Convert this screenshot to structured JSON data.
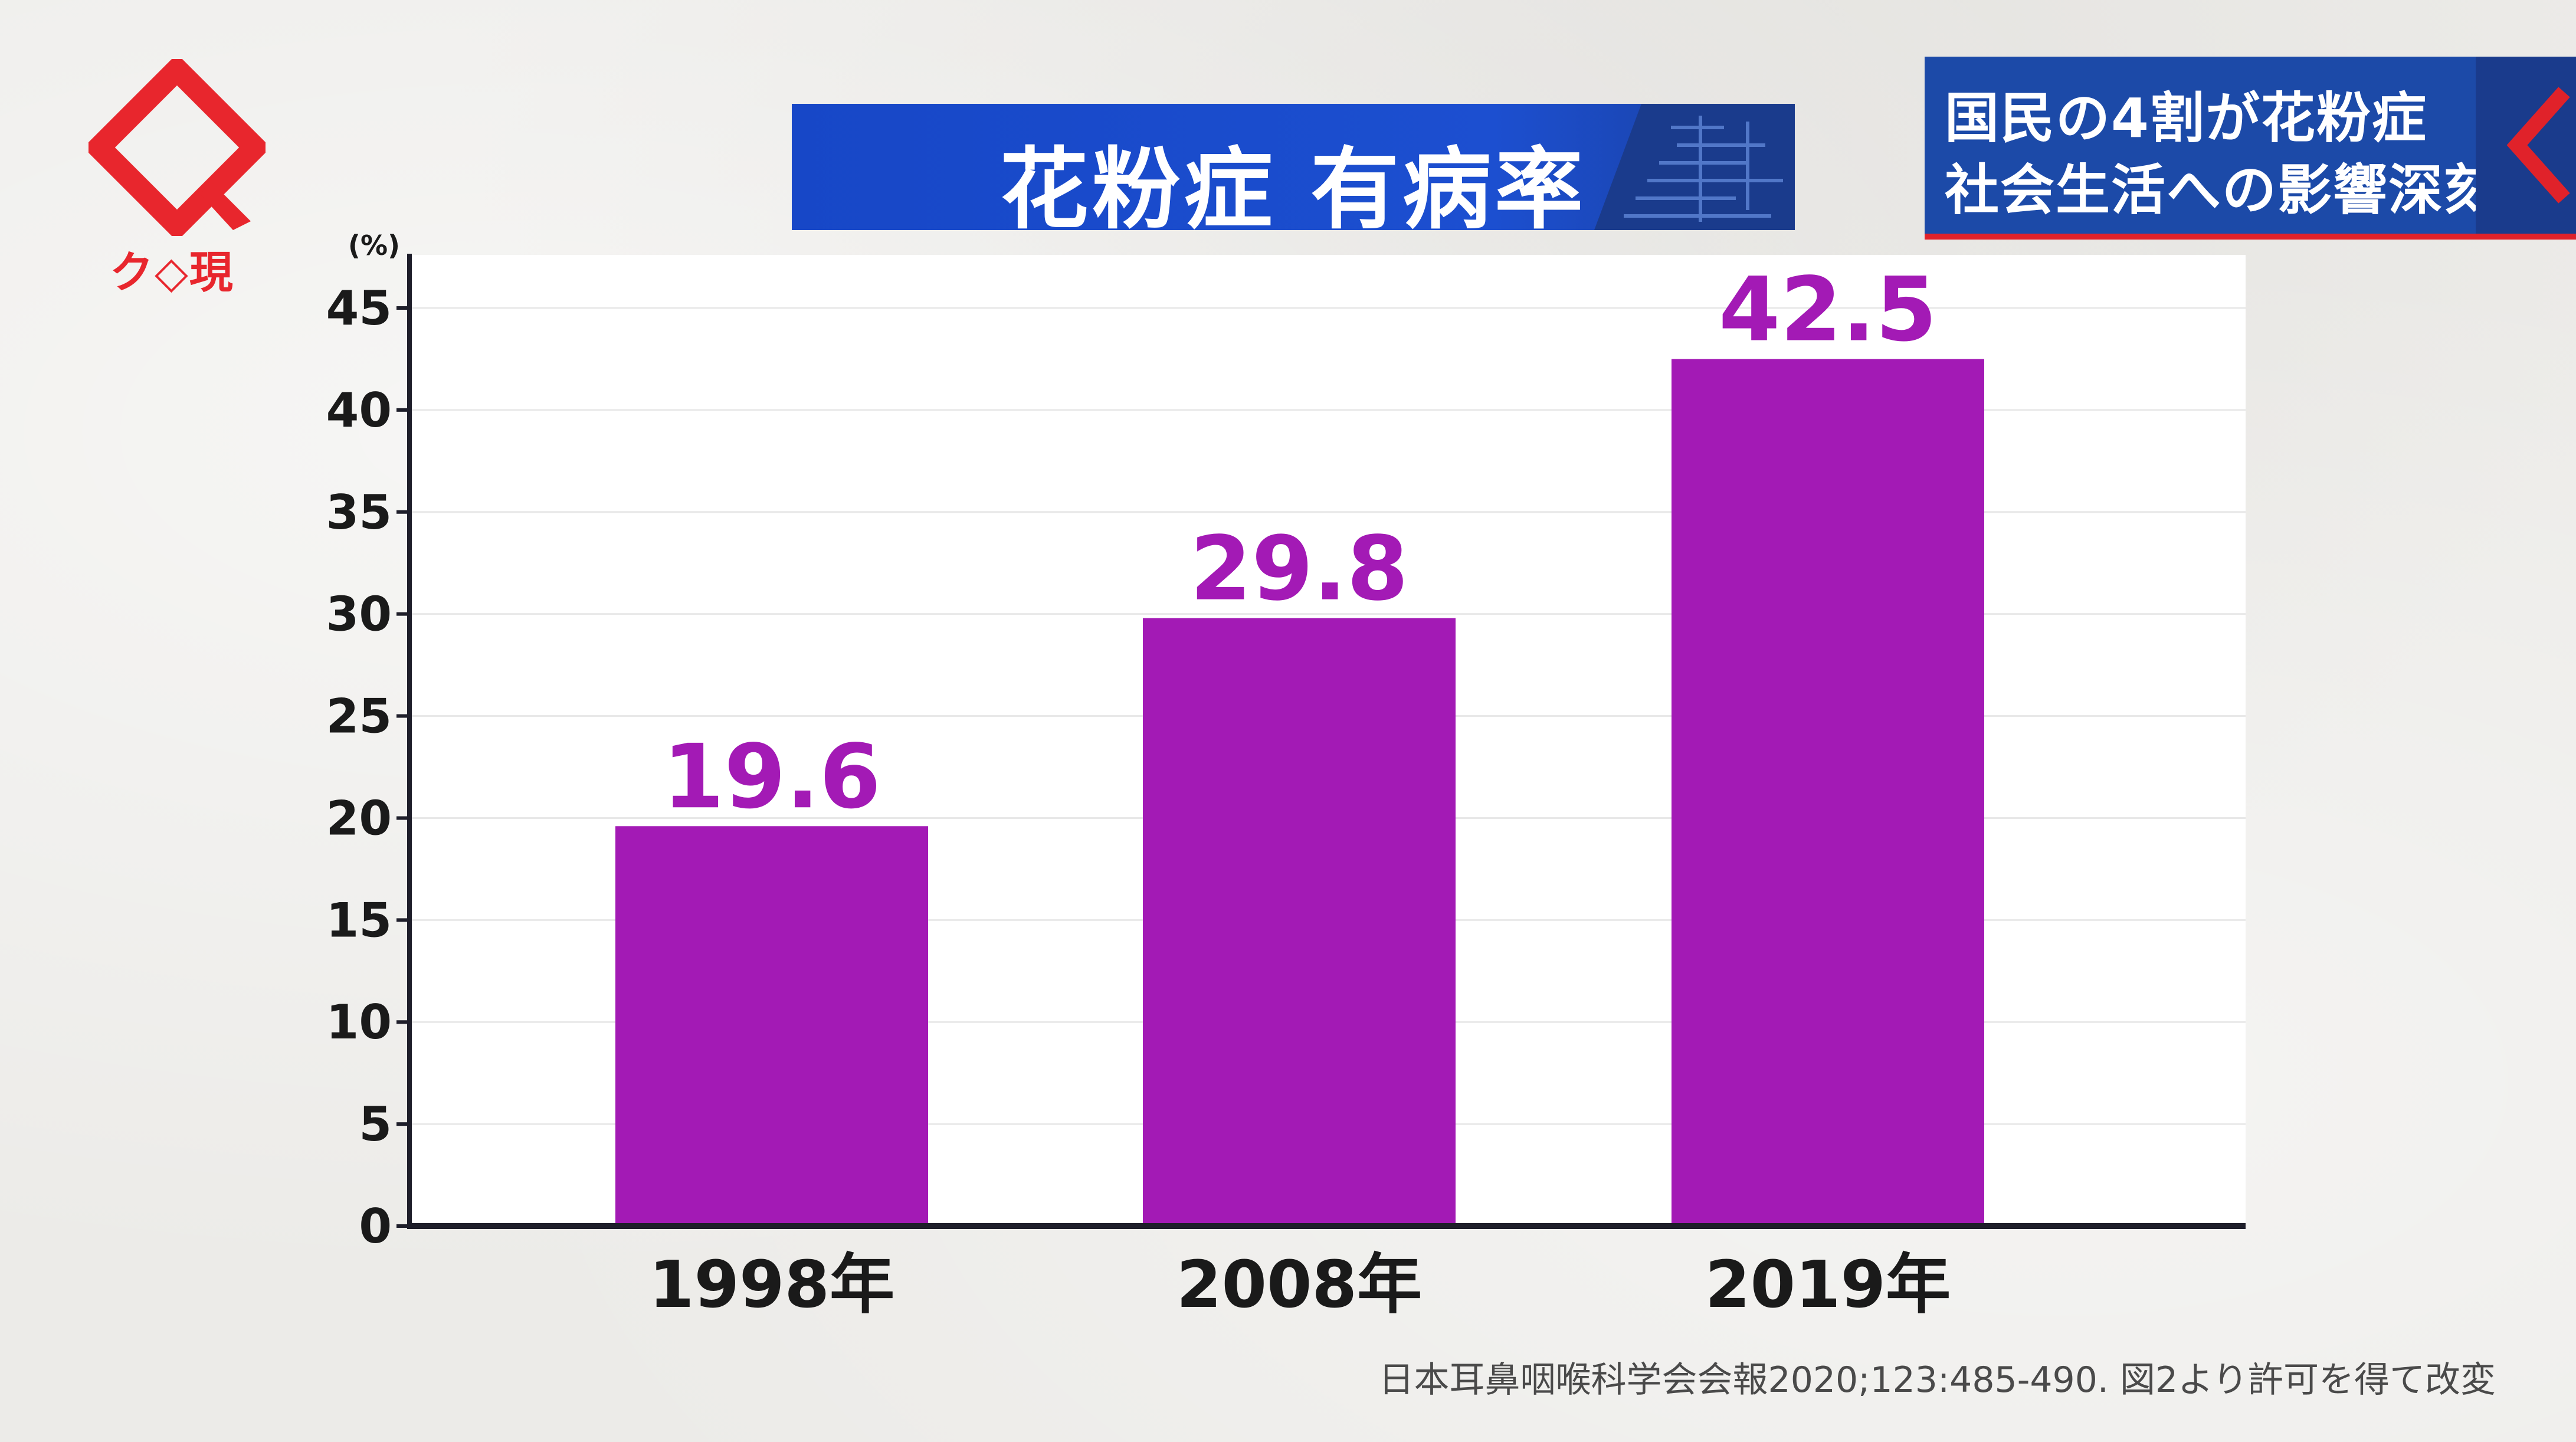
{
  "logo": {
    "text": "ク◇現",
    "icon": "diamond-q-logo",
    "color": "#e8262d"
  },
  "title_banner": {
    "title": "花粉症 有病率",
    "bg_color": "#1c4fd0"
  },
  "headline": {
    "line1": "国民の4割が花粉症",
    "line2": "社会生活への影響深刻",
    "bg_color": "#1c4aa8",
    "accent": "#e0222a"
  },
  "chart_data": {
    "type": "bar",
    "title": "花粉症 有病率",
    "ylabel": "(%)",
    "xlabel": "",
    "categories": [
      "1998年",
      "2008年",
      "2019年"
    ],
    "values": [
      19.6,
      29.8,
      42.5
    ],
    "value_labels": [
      "19.6",
      "29.8",
      "42.5"
    ],
    "ylim": [
      0,
      47
    ],
    "yticks": [
      0,
      5,
      10,
      15,
      20,
      25,
      30,
      35,
      40,
      45
    ],
    "grid": true,
    "bar_color": "#a31ab5",
    "label_color": "#a31ab5"
  },
  "source": "日本耳鼻咽喉科学会会報2020;123:485-490. 図2より許可を得て改変"
}
